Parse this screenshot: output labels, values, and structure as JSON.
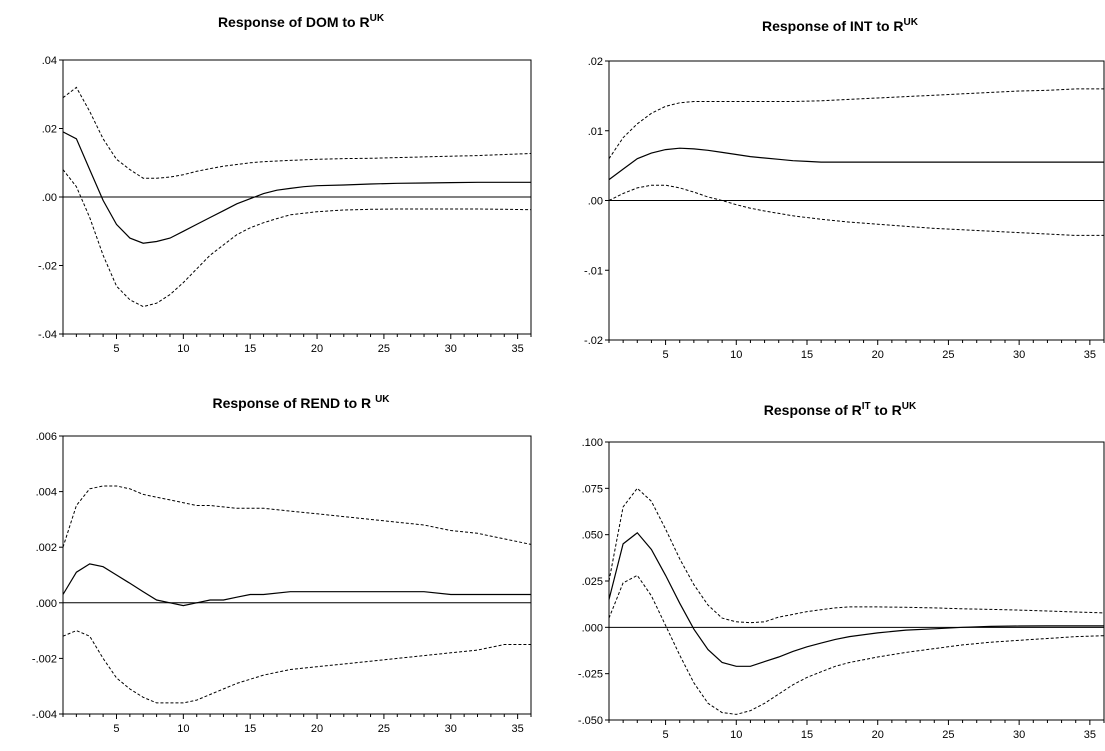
{
  "chart_data": [
    {
      "type": "line",
      "title": {
        "main": "Response of DOM to R",
        "sup": "UK"
      },
      "xlabel": "",
      "ylabel": "",
      "xlim": [
        1,
        36
      ],
      "ylim": [
        -0.04,
        0.04
      ],
      "xticks": [
        5,
        10,
        15,
        20,
        25,
        30,
        35
      ],
      "xtick_labels": [
        "5",
        "10",
        "15",
        "20",
        "25",
        "30",
        "35"
      ],
      "yticks": [
        0.04,
        0.02,
        0.0,
        -0.02,
        -0.04
      ],
      "ytick_labels": [
        ".04",
        ".02",
        ".00",
        "-.02",
        "-.04"
      ],
      "zero_line": true,
      "grid": false,
      "series": [
        {
          "style": "solid",
          "x": [
            1,
            2,
            3,
            4,
            5,
            6,
            7,
            8,
            9,
            10,
            11,
            12,
            13,
            14,
            15,
            16,
            17,
            18,
            19,
            20,
            22,
            24,
            26,
            28,
            30,
            32,
            34,
            36
          ],
          "values": [
            0.019,
            0.017,
            0.008,
            -0.001,
            -0.008,
            -0.012,
            -0.0135,
            -0.013,
            -0.012,
            -0.01,
            -0.008,
            -0.006,
            -0.004,
            -0.002,
            -0.0005,
            0.001,
            0.002,
            0.0025,
            0.003,
            0.0033,
            0.0035,
            0.0038,
            0.004,
            0.0041,
            0.0042,
            0.0043,
            0.0043,
            0.0043
          ]
        },
        {
          "style": "dashed",
          "x": [
            1,
            2,
            3,
            4,
            5,
            6,
            7,
            8,
            9,
            10,
            11,
            12,
            13,
            14,
            15,
            16,
            18,
            20,
            22,
            24,
            26,
            28,
            30,
            32,
            34,
            36
          ],
          "values": [
            0.029,
            0.032,
            0.025,
            0.017,
            0.011,
            0.008,
            0.0055,
            0.0055,
            0.0058,
            0.0065,
            0.0075,
            0.0083,
            0.009,
            0.0095,
            0.01,
            0.0103,
            0.0107,
            0.011,
            0.0112,
            0.0113,
            0.0115,
            0.0117,
            0.0119,
            0.0121,
            0.0124,
            0.0127
          ]
        },
        {
          "style": "dashed",
          "x": [
            1,
            2,
            3,
            4,
            5,
            6,
            7,
            8,
            9,
            10,
            11,
            12,
            13,
            14,
            15,
            16,
            17,
            18,
            20,
            22,
            24,
            26,
            28,
            30,
            32,
            34,
            36
          ],
          "values": [
            0.008,
            0.003,
            -0.006,
            -0.017,
            -0.026,
            -0.03,
            -0.032,
            -0.031,
            -0.0285,
            -0.025,
            -0.021,
            -0.017,
            -0.014,
            -0.011,
            -0.009,
            -0.0075,
            -0.0063,
            -0.0052,
            -0.0043,
            -0.0038,
            -0.0036,
            -0.0035,
            -0.0035,
            -0.0035,
            -0.0035,
            -0.0036,
            -0.0037
          ]
        }
      ]
    },
    {
      "type": "line",
      "title": {
        "main": "Response of INT to R",
        "sup": "UK"
      },
      "xlabel": "",
      "ylabel": "",
      "xlim": [
        1,
        36
      ],
      "ylim": [
        -0.02,
        0.02
      ],
      "xticks": [
        5,
        10,
        15,
        20,
        25,
        30,
        35
      ],
      "xtick_labels": [
        "5",
        "10",
        "15",
        "20",
        "25",
        "30",
        "35"
      ],
      "yticks": [
        0.02,
        0.01,
        0.0,
        -0.01,
        -0.02
      ],
      "ytick_labels": [
        ".02",
        ".01",
        ".00",
        "-.01",
        "-.02"
      ],
      "zero_line": true,
      "grid": false,
      "series": [
        {
          "style": "solid",
          "x": [
            1,
            2,
            3,
            4,
            5,
            6,
            7,
            8,
            9,
            10,
            11,
            12,
            13,
            14,
            15,
            16,
            18,
            20,
            24,
            28,
            32,
            36
          ],
          "values": [
            0.003,
            0.0045,
            0.006,
            0.0068,
            0.0073,
            0.0075,
            0.0074,
            0.0072,
            0.0069,
            0.0066,
            0.0063,
            0.0061,
            0.0059,
            0.0057,
            0.0056,
            0.0055,
            0.0055,
            0.0055,
            0.0055,
            0.0055,
            0.0055,
            0.0055
          ]
        },
        {
          "style": "dashed",
          "x": [
            1,
            2,
            3,
            4,
            5,
            6,
            7,
            8,
            10,
            12,
            14,
            16,
            18,
            20,
            22,
            24,
            26,
            28,
            30,
            32,
            34,
            36
          ],
          "values": [
            0.006,
            0.009,
            0.011,
            0.0125,
            0.0135,
            0.014,
            0.0142,
            0.0142,
            0.0142,
            0.0142,
            0.0142,
            0.0143,
            0.0145,
            0.0147,
            0.0149,
            0.0151,
            0.0153,
            0.0155,
            0.0157,
            0.0158,
            0.016,
            0.016
          ]
        },
        {
          "style": "dashed",
          "x": [
            1,
            2,
            3,
            4,
            5,
            6,
            7,
            8,
            9,
            10,
            11,
            12,
            14,
            16,
            18,
            20,
            22,
            24,
            26,
            28,
            30,
            32,
            34,
            36
          ],
          "values": [
            0.0,
            0.001,
            0.0018,
            0.0022,
            0.0022,
            0.0018,
            0.0012,
            0.0005,
            0.0,
            -0.0006,
            -0.0011,
            -0.0015,
            -0.0022,
            -0.0027,
            -0.0031,
            -0.0034,
            -0.0037,
            -0.004,
            -0.0042,
            -0.0044,
            -0.0046,
            -0.0048,
            -0.005,
            -0.005
          ]
        }
      ]
    },
    {
      "type": "line",
      "title": {
        "main": "Response of REND to R ",
        "sup": "UK"
      },
      "xlabel": "",
      "ylabel": "",
      "xlim": [
        1,
        36
      ],
      "ylim": [
        -0.004,
        0.006
      ],
      "xticks": [
        5,
        10,
        15,
        20,
        25,
        30,
        35
      ],
      "xtick_labels": [
        "5",
        "10",
        "15",
        "20",
        "25",
        "30",
        "35"
      ],
      "yticks": [
        0.006,
        0.004,
        0.002,
        0.0,
        -0.002,
        -0.004
      ],
      "ytick_labels": [
        ".006",
        ".004",
        ".002",
        ".000",
        "-.002",
        "-.004"
      ],
      "zero_line": true,
      "grid": false,
      "series": [
        {
          "style": "solid",
          "x": [
            1,
            2,
            3,
            4,
            5,
            6,
            7,
            8,
            9,
            10,
            11,
            12,
            13,
            14,
            15,
            16,
            18,
            20,
            22,
            24,
            26,
            28,
            30,
            32,
            34,
            36
          ],
          "values": [
            0.0003,
            0.0011,
            0.0014,
            0.0013,
            0.001,
            0.0007,
            0.0004,
            0.0001,
            0.0,
            -0.0001,
            0.0,
            0.0001,
            0.0001,
            0.0002,
            0.0003,
            0.0003,
            0.0004,
            0.0004,
            0.0004,
            0.0004,
            0.0004,
            0.0004,
            0.0003,
            0.0003,
            0.0003,
            0.0003
          ]
        },
        {
          "style": "dashed",
          "x": [
            1,
            2,
            3,
            4,
            5,
            6,
            7,
            8,
            9,
            10,
            11,
            12,
            14,
            16,
            18,
            20,
            22,
            24,
            26,
            28,
            30,
            32,
            34,
            36
          ],
          "values": [
            0.002,
            0.0035,
            0.0041,
            0.0042,
            0.0042,
            0.0041,
            0.0039,
            0.0038,
            0.0037,
            0.0036,
            0.0035,
            0.0035,
            0.0034,
            0.0034,
            0.0033,
            0.0032,
            0.0031,
            0.003,
            0.0029,
            0.0028,
            0.0026,
            0.0025,
            0.0023,
            0.0021
          ]
        },
        {
          "style": "dashed",
          "x": [
            1,
            2,
            3,
            4,
            5,
            6,
            7,
            8,
            9,
            10,
            11,
            12,
            14,
            16,
            18,
            20,
            22,
            24,
            26,
            28,
            30,
            32,
            34,
            36
          ],
          "values": [
            -0.0012,
            -0.001,
            -0.0012,
            -0.002,
            -0.0027,
            -0.0031,
            -0.0034,
            -0.0036,
            -0.0036,
            -0.0036,
            -0.0035,
            -0.0033,
            -0.0029,
            -0.0026,
            -0.0024,
            -0.0023,
            -0.0022,
            -0.0021,
            -0.002,
            -0.0019,
            -0.0018,
            -0.0017,
            -0.0015,
            -0.0015
          ]
        }
      ]
    },
    {
      "type": "line",
      "title": {
        "main": "Response of R",
        "sup1": "IT",
        "mid": " to R",
        "sup": "UK"
      },
      "xlabel": "",
      "ylabel": "",
      "xlim": [
        1,
        36
      ],
      "ylim": [
        -0.05,
        0.1
      ],
      "xticks": [
        5,
        10,
        15,
        20,
        25,
        30,
        35
      ],
      "xtick_labels": [
        "5",
        "10",
        "15",
        "20",
        "25",
        "30",
        "35"
      ],
      "yticks": [
        0.1,
        0.075,
        0.05,
        0.025,
        0.0,
        -0.025,
        -0.05
      ],
      "ytick_labels": [
        ".100",
        ".075",
        ".050",
        ".025",
        ".000",
        "-.025",
        "-.050"
      ],
      "zero_line": true,
      "grid": false,
      "series": [
        {
          "style": "solid",
          "x": [
            1,
            2,
            3,
            4,
            5,
            6,
            7,
            8,
            9,
            10,
            11,
            12,
            13,
            14,
            15,
            16,
            17,
            18,
            20,
            22,
            24,
            26,
            28,
            30,
            32,
            34,
            36
          ],
          "values": [
            0.015,
            0.045,
            0.051,
            0.042,
            0.028,
            0.013,
            -0.001,
            -0.012,
            -0.019,
            -0.021,
            -0.021,
            -0.0185,
            -0.016,
            -0.013,
            -0.0105,
            -0.0085,
            -0.0065,
            -0.005,
            -0.003,
            -0.0015,
            -0.0008,
            0.0,
            0.0005,
            0.0007,
            0.0008,
            0.0008,
            0.0008
          ]
        },
        {
          "style": "dashed",
          "x": [
            1,
            2,
            3,
            4,
            5,
            6,
            7,
            8,
            9,
            10,
            11,
            12,
            13,
            14,
            15,
            16,
            17,
            18,
            20,
            22,
            24,
            26,
            28,
            30,
            32,
            34,
            36
          ],
          "values": [
            0.025,
            0.065,
            0.075,
            0.068,
            0.053,
            0.037,
            0.023,
            0.012,
            0.005,
            0.003,
            0.0025,
            0.003,
            0.0055,
            0.007,
            0.0085,
            0.0095,
            0.0105,
            0.011,
            0.011,
            0.0108,
            0.0105,
            0.01,
            0.0097,
            0.0093,
            0.0088,
            0.0083,
            0.0078
          ]
        },
        {
          "style": "dashed",
          "x": [
            1,
            2,
            3,
            4,
            5,
            6,
            7,
            8,
            9,
            10,
            11,
            12,
            13,
            14,
            15,
            16,
            17,
            18,
            20,
            22,
            24,
            26,
            28,
            30,
            32,
            34,
            36
          ],
          "values": [
            0.005,
            0.024,
            0.028,
            0.017,
            0.001,
            -0.015,
            -0.03,
            -0.041,
            -0.046,
            -0.047,
            -0.045,
            -0.041,
            -0.036,
            -0.031,
            -0.027,
            -0.024,
            -0.021,
            -0.019,
            -0.016,
            -0.0135,
            -0.0115,
            -0.0095,
            -0.008,
            -0.007,
            -0.006,
            -0.005,
            -0.0045
          ]
        }
      ]
    }
  ]
}
